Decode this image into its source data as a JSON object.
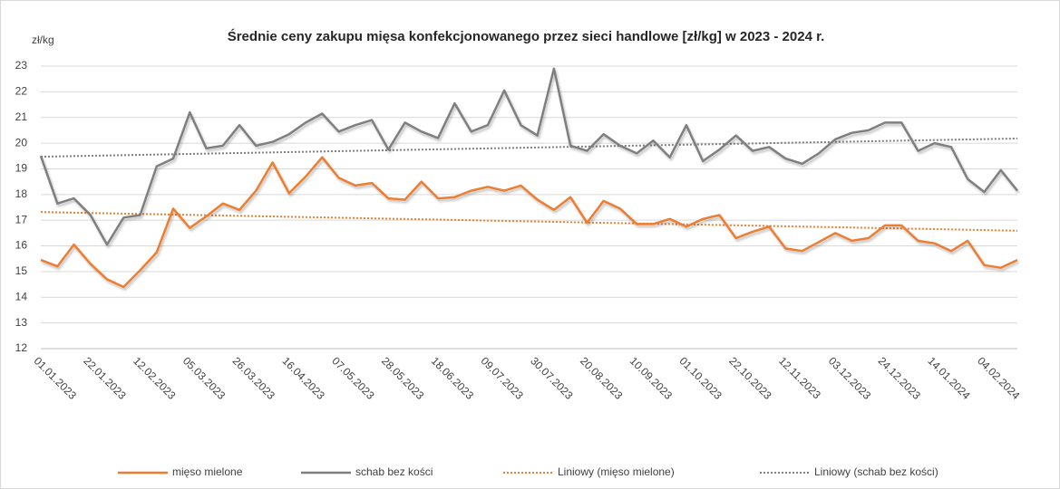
{
  "chart_data": {
    "type": "line",
    "title": "Średnie ceny zakupu mięsa konfekcjonowanego przez sieci handlowe [zł/kg]  w 2023 - 2024 r.",
    "y_label": "zł/kg",
    "categories": [
      "01.01.2023",
      null,
      null,
      "22.01.2023",
      null,
      null,
      "12.02.2023",
      null,
      null,
      "05.03.2023",
      null,
      null,
      "26.03.2023",
      null,
      null,
      "16.04.2023",
      null,
      null,
      "07.05.2023",
      null,
      null,
      "28.05.2023",
      null,
      null,
      "18.06.2023",
      null,
      null,
      "09.07.2023",
      null,
      null,
      "30.07.2023",
      null,
      null,
      "20.08.2023",
      null,
      null,
      "10.09.2023",
      null,
      null,
      "01.10.2023",
      null,
      null,
      "22.10.2023",
      null,
      null,
      "12.11.2023",
      null,
      null,
      "03.12.2023",
      null,
      null,
      "24.12.2023",
      null,
      null,
      "14.01.2024",
      null,
      null,
      "04.02.2024",
      null,
      null
    ],
    "series": [
      {
        "name": "mięso mielone",
        "color": "#ed7d31",
        "trendline": {
          "name": "Liniowy (mięso mielone)",
          "color": "#ed7d31",
          "style": "dotted"
        },
        "values": [
          15.45,
          15.2,
          16.05,
          15.3,
          14.7,
          14.4,
          15.05,
          15.75,
          17.45,
          16.7,
          17.15,
          17.65,
          17.4,
          18.15,
          19.25,
          18.05,
          18.7,
          19.45,
          18.65,
          18.35,
          18.45,
          17.85,
          17.8,
          18.5,
          17.85,
          17.9,
          18.15,
          18.3,
          18.15,
          18.35,
          17.8,
          17.4,
          17.9,
          16.9,
          17.75,
          17.45,
          16.85,
          16.85,
          17.05,
          16.75,
          17.05,
          17.2,
          16.3,
          16.55,
          16.75,
          15.9,
          15.8,
          16.15,
          16.5,
          16.2,
          16.3,
          16.8,
          16.8,
          16.2,
          16.1,
          15.8,
          16.2,
          15.25,
          15.15,
          15.45
        ]
      },
      {
        "name": "schab bez kości",
        "color": "#7f7f7f",
        "trendline": {
          "name": "Liniowy (schab bez kości)",
          "color": "#7f7f7f",
          "style": "dotted"
        },
        "values": [
          19.5,
          17.65,
          17.85,
          17.2,
          16.05,
          17.1,
          17.2,
          19.1,
          19.4,
          21.2,
          19.8,
          19.9,
          20.7,
          19.9,
          20.05,
          20.35,
          20.8,
          21.15,
          20.45,
          20.7,
          20.9,
          19.75,
          20.8,
          20.45,
          20.2,
          21.55,
          20.45,
          20.7,
          22.05,
          20.7,
          20.3,
          22.9,
          19.9,
          19.7,
          20.35,
          19.9,
          19.6,
          20.1,
          19.45,
          20.7,
          19.3,
          19.75,
          20.3,
          19.7,
          19.85,
          19.4,
          19.2,
          19.6,
          20.15,
          20.4,
          20.5,
          20.8,
          20.8,
          19.7,
          20.0,
          19.85,
          18.6,
          18.1,
          18.95,
          18.15
        ]
      }
    ],
    "ylim": [
      12,
      23
    ],
    "yticks": [
      12,
      13,
      14,
      15,
      16,
      17,
      18,
      19,
      20,
      21,
      22,
      23
    ],
    "grid": true,
    "legend": "bottom"
  }
}
